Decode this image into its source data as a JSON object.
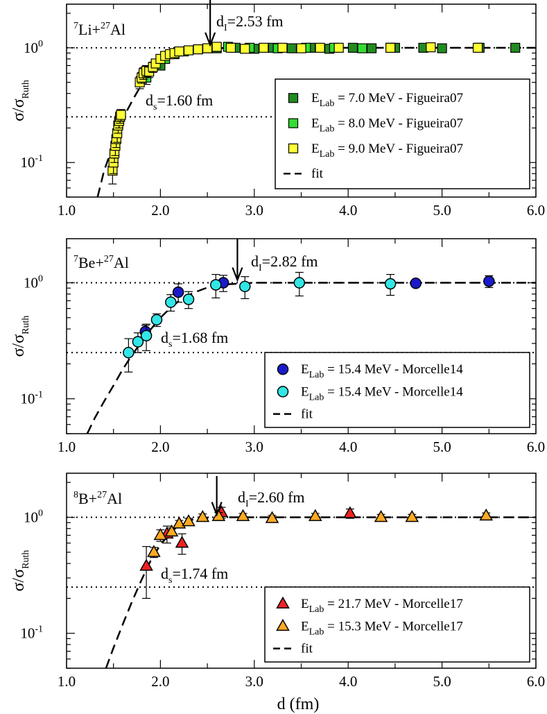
{
  "figure": {
    "x_axis_label": "d (fm)",
    "y_axis_label_main": "σ/σ",
    "y_axis_label_sub": "Ruth"
  },
  "chart_data": [
    {
      "type": "scatter",
      "yscale": "log",
      "xlim": [
        1.0,
        6.0
      ],
      "ylim": [
        0.05,
        2.4
      ],
      "xticks": [
        "1.0",
        "2.0",
        "3.0",
        "4.0",
        "5.0",
        "6.0"
      ],
      "yticks": [
        {
          "base": "10",
          "exp": "0",
          "value": 1.0
        },
        {
          "base": "10",
          "exp": "-1",
          "value": 0.1
        }
      ],
      "reference_lines": [
        1.0,
        0.25
      ],
      "title_parts": {
        "a_mass": "7",
        "a_el": "Li+",
        "b_mass": "27",
        "b_el": "Al"
      },
      "d_I": {
        "label": "d",
        "sub": "I",
        "text": "=2.53 fm",
        "x": 2.53
      },
      "d_s": {
        "label": "d",
        "sub": "s",
        "text": "=1.60 fm",
        "x": 1.6
      },
      "fit": {
        "label": "fit",
        "x": [
          1.33,
          1.4,
          1.48,
          1.56,
          1.64,
          1.72,
          1.8,
          1.9,
          2.0,
          2.1,
          2.2,
          2.35,
          2.5,
          2.7,
          3.0,
          3.5,
          4.0,
          5.0,
          6.0
        ],
        "y": [
          0.05,
          0.085,
          0.13,
          0.2,
          0.28,
          0.37,
          0.48,
          0.6,
          0.72,
          0.82,
          0.89,
          0.95,
          0.98,
          0.995,
          1.0,
          1.0,
          1.0,
          1.0,
          1.0
        ]
      },
      "series": [
        {
          "name": "7.0 MeV",
          "legend_prefix": "E",
          "legend_sub": "Lab",
          "legend_rest": " = 7.0 MeV - Figueira07",
          "marker": "square",
          "color": "#228b22",
          "x": [
            2.0,
            2.15,
            2.4,
            2.6,
            2.8,
            3.0,
            3.2,
            3.4,
            3.6,
            3.8,
            4.05,
            4.25,
            4.5,
            4.8,
            5.0,
            5.4,
            5.78
          ],
          "y": [
            0.7,
            0.88,
            0.97,
            0.99,
            1.0,
            0.98,
            1.0,
            0.99,
            1.0,
            0.98,
            1.0,
            0.99,
            1.0,
            1.0,
            0.99,
            1.0,
            1.0
          ],
          "err": [
            0.06,
            0.05,
            0.05,
            0.05,
            0.05,
            0.05,
            0.05,
            0.05,
            0.05,
            0.05,
            0.05,
            0.05,
            0.05,
            0.05,
            0.05,
            0.05,
            0.04
          ]
        },
        {
          "name": "8.0 MeV",
          "legend_prefix": "E",
          "legend_sub": "Lab",
          "legend_rest": " = 8.0 MeV - Figueira07",
          "marker": "square",
          "color": "#33dd33",
          "x": [
            1.85,
            2.05,
            2.25,
            2.5,
            2.72,
            2.95,
            3.25,
            3.55,
            3.85,
            4.15,
            4.45
          ],
          "y": [
            0.55,
            0.8,
            0.93,
            0.99,
            1.02,
            1.0,
            0.99,
            1.0,
            1.0,
            0.99,
            1.0
          ],
          "err": [
            0.07,
            0.06,
            0.05,
            0.05,
            0.05,
            0.05,
            0.05,
            0.05,
            0.05,
            0.05,
            0.05
          ]
        },
        {
          "name": "9.0 MeV",
          "legend_prefix": "E",
          "legend_sub": "Lab",
          "legend_rest": " = 9.0 MeV - Figueira07",
          "marker": "square",
          "color": "#ffff33",
          "x": [
            1.49,
            1.5,
            1.51,
            1.52,
            1.53,
            1.54,
            1.55,
            1.56,
            1.57,
            1.58,
            1.78,
            1.8,
            1.82,
            1.85,
            1.88,
            1.92,
            1.95,
            2.0,
            2.05,
            2.1,
            2.15,
            2.2,
            2.3,
            2.4,
            2.5,
            2.6,
            2.75,
            2.9,
            3.1,
            3.3,
            3.5,
            3.7,
            3.9,
            4.45,
            4.88,
            5.38
          ],
          "y": [
            0.085,
            0.1,
            0.12,
            0.14,
            0.16,
            0.18,
            0.21,
            0.23,
            0.25,
            0.26,
            0.5,
            0.55,
            0.6,
            0.63,
            0.62,
            0.68,
            0.73,
            0.8,
            0.85,
            0.88,
            0.9,
            0.93,
            0.95,
            0.97,
            0.99,
            1.02,
            1.0,
            0.98,
            1.0,
            1.0,
            0.99,
            1.0,
            1.0,
            1.0,
            1.01,
            1.0
          ],
          "err": [
            0.02,
            0.02,
            0.02,
            0.025,
            0.025,
            0.03,
            0.03,
            0.03,
            0.03,
            0.03,
            0.06,
            0.06,
            0.07,
            0.07,
            0.07,
            0.07,
            0.06,
            0.07,
            0.07,
            0.07,
            0.07,
            0.07,
            0.07,
            0.08,
            0.08,
            0.09,
            0.07,
            0.06,
            0.06,
            0.05,
            0.05,
            0.05,
            0.05,
            0.05,
            0.05,
            0.05
          ]
        }
      ]
    },
    {
      "type": "scatter",
      "yscale": "log",
      "xlim": [
        1.0,
        6.0
      ],
      "ylim": [
        0.05,
        2.4
      ],
      "xticks": [
        "1.0",
        "2.0",
        "3.0",
        "4.0",
        "5.0",
        "6.0"
      ],
      "yticks": [
        {
          "base": "10",
          "exp": "0",
          "value": 1.0
        },
        {
          "base": "10",
          "exp": "-1",
          "value": 0.1
        }
      ],
      "reference_lines": [
        1.0,
        0.25
      ],
      "title_parts": {
        "a_mass": "7",
        "a_el": "Be+",
        "b_mass": "27",
        "b_el": "Al"
      },
      "d_I": {
        "label": "d",
        "sub": "I",
        "text": "=2.82 fm",
        "x": 2.82
      },
      "d_s": {
        "label": "d",
        "sub": "s",
        "text": "=1.68 fm",
        "x": 1.68
      },
      "fit": {
        "label": "fit",
        "x": [
          1.22,
          1.3,
          1.4,
          1.5,
          1.6,
          1.7,
          1.8,
          1.9,
          2.0,
          2.1,
          2.2,
          2.35,
          2.5,
          2.7,
          3.0,
          3.5,
          4.0,
          5.0,
          6.0
        ],
        "y": [
          0.05,
          0.068,
          0.095,
          0.13,
          0.18,
          0.24,
          0.31,
          0.4,
          0.5,
          0.6,
          0.7,
          0.82,
          0.91,
          0.97,
          1.0,
          1.0,
          1.0,
          1.0,
          1.0
        ]
      },
      "series": [
        {
          "name": "Be dark",
          "legend_prefix": "E",
          "legend_sub": "Lab",
          "legend_rest": " = 15.4 MeV - Morcelle14",
          "marker": "circle",
          "color": "#1a1acc",
          "x": [
            1.84,
            2.19,
            2.67,
            4.72,
            5.5
          ],
          "y": [
            0.38,
            0.83,
            1.0,
            0.99,
            1.03
          ],
          "err": [
            0.05,
            0.15,
            0.16,
            0.05,
            0.12
          ]
        },
        {
          "name": "Be light",
          "legend_prefix": "E",
          "legend_sub": "Lab",
          "legend_rest": " = 15.4 MeV - Morcelle14",
          "marker": "circle",
          "color": "#33e6e6",
          "x": [
            1.66,
            1.76,
            1.85,
            1.96,
            2.11,
            2.3,
            2.59,
            2.9,
            3.48,
            4.45
          ],
          "y": [
            0.25,
            0.31,
            0.35,
            0.48,
            0.68,
            0.72,
            0.96,
            0.93,
            1.0,
            0.98
          ],
          "err": [
            0.08,
            0.06,
            0.09,
            0.06,
            0.11,
            0.12,
            0.22,
            0.2,
            0.23,
            0.2
          ]
        }
      ]
    },
    {
      "type": "scatter",
      "yscale": "log",
      "xlim": [
        1.0,
        6.0
      ],
      "ylim": [
        0.05,
        2.4
      ],
      "xticks": [
        "1.0",
        "2.0",
        "3.0",
        "4.0",
        "5.0",
        "6.0"
      ],
      "yticks": [
        {
          "base": "10",
          "exp": "0",
          "value": 1.0
        },
        {
          "base": "10",
          "exp": "-1",
          "value": 0.1
        }
      ],
      "reference_lines": [
        1.0,
        0.25
      ],
      "title_parts": {
        "a_mass": "8",
        "a_el": "B+",
        "b_mass": "27",
        "b_el": "Al"
      },
      "d_I": {
        "label": "d",
        "sub": "I",
        "text": "=2.60 fm",
        "x": 2.6
      },
      "d_s": {
        "label": "d",
        "sub": "s",
        "text": "=1.74 fm",
        "x": 1.74
      },
      "fit": {
        "label": "fit",
        "x": [
          1.42,
          1.5,
          1.6,
          1.7,
          1.8,
          1.9,
          2.0,
          2.1,
          2.2,
          2.35,
          2.5,
          2.7,
          3.0,
          3.5,
          4.0,
          5.0,
          6.0
        ],
        "y": [
          0.05,
          0.075,
          0.12,
          0.19,
          0.29,
          0.43,
          0.58,
          0.73,
          0.86,
          0.96,
          0.99,
          1.0,
          1.0,
          1.0,
          1.0,
          1.0,
          1.0
        ]
      },
      "series": [
        {
          "name": "B red",
          "legend_prefix": "E",
          "legend_sub": "Lab",
          "legend_rest": " = 21.7 MeV - Morcelle17",
          "marker": "triangle",
          "color": "#ee2222",
          "x": [
            1.85,
            2.07,
            2.23,
            2.65,
            4.02
          ],
          "y": [
            0.38,
            0.72,
            0.6,
            1.1,
            1.08
          ],
          "err": [
            0.18,
            0.12,
            0.12,
            0.12,
            0.1
          ]
        },
        {
          "name": "B orange",
          "legend_prefix": "E",
          "legend_sub": "Lab",
          "legend_rest": " = 15.3 MeV - Morcelle17",
          "marker": "triangle",
          "color": "#ffaa22",
          "x": [
            1.93,
            2.0,
            2.12,
            2.2,
            2.3,
            2.45,
            2.62,
            2.88,
            3.19,
            3.65,
            4.35,
            4.68,
            5.47
          ],
          "y": [
            0.5,
            0.7,
            0.75,
            0.88,
            0.92,
            1.0,
            1.02,
            1.02,
            0.98,
            1.02,
            1.0,
            1.0,
            1.03
          ],
          "err": [
            0.05,
            0.08,
            0.06,
            0.06,
            0.06,
            0.07,
            0.08,
            0.06,
            0.06,
            0.06,
            0.06,
            0.06,
            0.06
          ]
        }
      ]
    }
  ]
}
